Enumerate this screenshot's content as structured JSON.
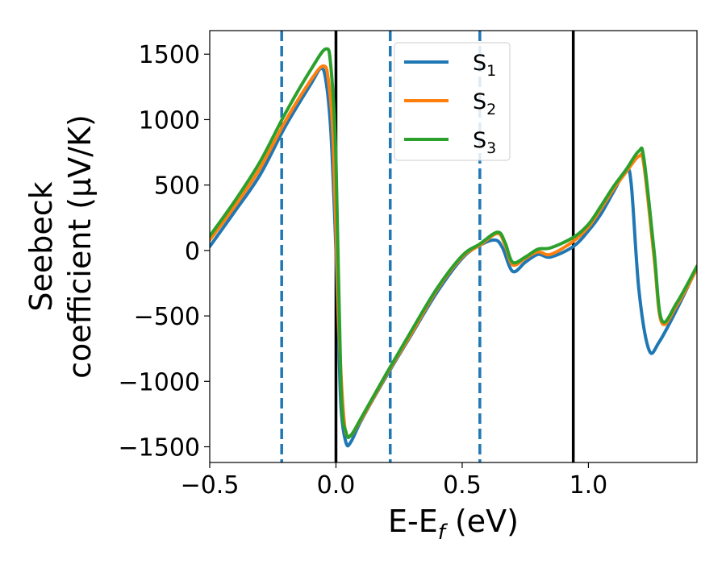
{
  "chart_data": {
    "type": "line",
    "xlabel": {
      "main": "E-E",
      "sub": "f",
      "unit": " (eV)"
    },
    "ylabel": {
      "line1": "Seebeck",
      "line2": "coefficient  (μV/K)"
    },
    "xlim": [
      -0.5,
      1.43
    ],
    "ylim": [
      -1620,
      1680
    ],
    "xticks": [
      {
        "value": -0.5,
        "label": "−0.5"
      },
      {
        "value": 0.0,
        "label": "0.0"
      },
      {
        "value": 0.5,
        "label": "0.5"
      },
      {
        "value": 1.0,
        "label": "1.0"
      }
    ],
    "yticks": [
      {
        "value": 1500,
        "label": "1500"
      },
      {
        "value": 1000,
        "label": "1000"
      },
      {
        "value": 500,
        "label": "500"
      },
      {
        "value": 0,
        "label": "0"
      },
      {
        "value": -500,
        "label": "−500"
      },
      {
        "value": -1000,
        "label": "−1000"
      },
      {
        "value": -1500,
        "label": "−1500"
      }
    ],
    "grid": false,
    "legend": {
      "placement": "top-center",
      "entries": [
        {
          "main": "S",
          "sub": "1",
          "color": "#1f77b4"
        },
        {
          "main": "S",
          "sub": "2",
          "color": "#ff7f0e"
        },
        {
          "main": "S",
          "sub": "3",
          "color": "#2ca02c"
        }
      ]
    },
    "vlines": [
      {
        "x": -0.215,
        "style": "dashed",
        "color": "#1f77b4"
      },
      {
        "x": 0.0,
        "style": "solid",
        "color": "#000000"
      },
      {
        "x": 0.215,
        "style": "dashed",
        "color": "#1f77b4"
      },
      {
        "x": 0.57,
        "style": "dashed",
        "color": "#1f77b4"
      },
      {
        "x": 0.94,
        "style": "solid",
        "color": "#000000"
      }
    ],
    "series": [
      {
        "name": "S1",
        "color": "#1f77b4",
        "x": [
          -0.5,
          -0.4,
          -0.3,
          -0.2,
          -0.1,
          -0.06,
          -0.04,
          -0.02,
          0.0,
          0.01,
          0.02,
          0.04,
          0.06,
          0.1,
          0.2,
          0.3,
          0.4,
          0.5,
          0.57,
          0.63,
          0.66,
          0.7,
          0.75,
          0.8,
          0.85,
          0.94,
          1.0,
          1.05,
          1.1,
          1.15,
          1.17,
          1.2,
          1.24,
          1.28,
          1.35,
          1.43
        ],
        "y": [
          30,
          300,
          580,
          950,
          1270,
          1390,
          1300,
          900,
          0,
          -600,
          -1200,
          -1470,
          -1460,
          -1300,
          -960,
          -640,
          -320,
          -60,
          40,
          80,
          20,
          -160,
          -90,
          -30,
          -50,
          30,
          150,
          280,
          450,
          610,
          500,
          -300,
          -760,
          -700,
          -450,
          -130
        ]
      },
      {
        "name": "S2",
        "color": "#ff7f0e",
        "x": [
          -0.5,
          -0.4,
          -0.3,
          -0.2,
          -0.1,
          -0.05,
          -0.03,
          -0.01,
          0.01,
          0.03,
          0.05,
          0.1,
          0.2,
          0.3,
          0.4,
          0.5,
          0.57,
          0.64,
          0.67,
          0.7,
          0.75,
          0.8,
          0.85,
          0.94,
          1.0,
          1.05,
          1.1,
          1.15,
          1.2,
          1.22,
          1.26,
          1.29,
          1.35,
          1.43
        ],
        "y": [
          80,
          340,
          630,
          990,
          1300,
          1410,
          1300,
          800,
          -500,
          -1250,
          -1420,
          -1290,
          -950,
          -630,
          -300,
          -50,
          40,
          130,
          40,
          -110,
          -60,
          -10,
          -30,
          70,
          180,
          320,
          470,
          600,
          720,
          650,
          -50,
          -550,
          -420,
          -140
        ]
      },
      {
        "name": "S3",
        "color": "#2ca02c",
        "x": [
          -0.5,
          -0.4,
          -0.3,
          -0.2,
          -0.1,
          -0.04,
          -0.02,
          0.0,
          0.02,
          0.04,
          0.06,
          0.1,
          0.2,
          0.3,
          0.4,
          0.5,
          0.57,
          0.64,
          0.67,
          0.7,
          0.75,
          0.8,
          0.85,
          0.94,
          1.0,
          1.05,
          1.1,
          1.15,
          1.2,
          1.22,
          1.26,
          1.29,
          1.35,
          1.43
        ],
        "y": [
          110,
          380,
          680,
          1050,
          1380,
          1540,
          1400,
          700,
          -1050,
          -1390,
          -1410,
          -1280,
          -940,
          -610,
          -290,
          -40,
          50,
          140,
          60,
          -90,
          -50,
          10,
          20,
          100,
          200,
          340,
          490,
          620,
          760,
          700,
          0,
          -530,
          -400,
          -120
        ]
      }
    ]
  }
}
